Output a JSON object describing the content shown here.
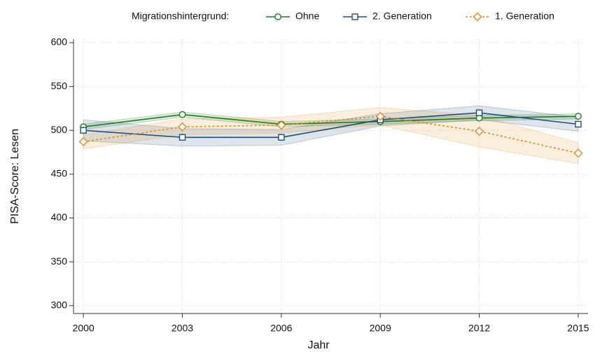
{
  "chart_data": {
    "type": "line",
    "legend_title": "Migrationshintergrund:",
    "legend_position": "top",
    "x_label": "Jahr",
    "y_label": "PISA-Score: Lesen",
    "x": [
      2000,
      2003,
      2006,
      2009,
      2012,
      2015
    ],
    "xlim": [
      1999.7,
      2015.3
    ],
    "xticks": [
      2000,
      2003,
      2006,
      2009,
      2012,
      2015
    ],
    "ylim": [
      291,
      604
    ],
    "yticks": [
      300,
      350,
      400,
      450,
      500,
      550,
      600
    ],
    "grid": true,
    "series": [
      {
        "name": "Ohne",
        "color": "#1e7b1e",
        "marker": "circle",
        "dashed": false,
        "values": [
          504,
          518,
          507,
          510,
          514,
          516
        ],
        "ci_lower": [
          501,
          515,
          504,
          507,
          511,
          513
        ],
        "ci_upper": [
          507,
          521,
          510,
          513,
          517,
          519
        ]
      },
      {
        "name": "2. Generation",
        "color": "#1f4e79",
        "marker": "square",
        "dashed": false,
        "values": [
          500,
          492,
          492,
          512,
          520,
          507
        ],
        "ci_lower": [
          488,
          482,
          483,
          505,
          512,
          499
        ],
        "ci_upper": [
          512,
          502,
          501,
          519,
          528,
          515
        ]
      },
      {
        "name": "1. Generation",
        "color": "#e08a1e",
        "marker": "diamond",
        "dashed": true,
        "values": [
          487,
          504,
          506,
          516,
          499,
          474
        ],
        "ci_lower": [
          479,
          495,
          497,
          506,
          481,
          462
        ],
        "ci_upper": [
          495,
          513,
          515,
          526,
          517,
          486
        ]
      }
    ]
  }
}
